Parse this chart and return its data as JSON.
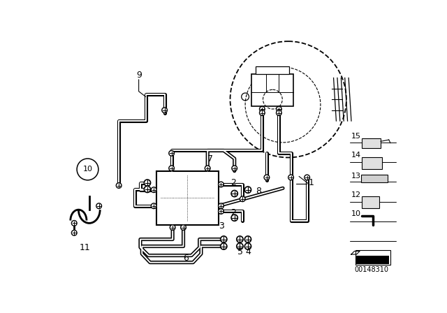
{
  "bg_color": "#ffffff",
  "line_color": "#000000",
  "fig_width": 6.4,
  "fig_height": 4.48,
  "dpi": 100,
  "part_number": "00148310"
}
